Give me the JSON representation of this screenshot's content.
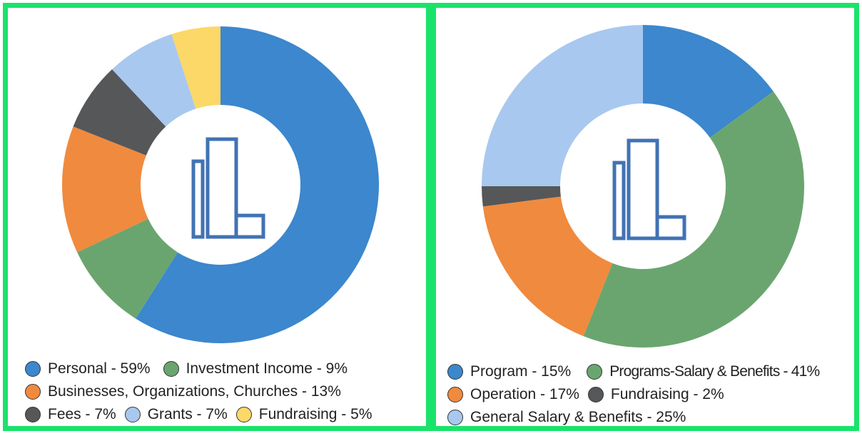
{
  "chart_data": [
    {
      "type": "pie",
      "variant": "donut",
      "title": "",
      "categories": [
        "Personal",
        "Investment Income",
        "Businesses, Organizations, Churches",
        "Fees",
        "Grants",
        "Fundraising"
      ],
      "values": [
        59,
        9,
        13,
        7,
        7,
        5
      ],
      "colors": [
        "#3c87cd",
        "#6aa56f",
        "#f08a3e",
        "#555759",
        "#a8c8ef",
        "#fbd867"
      ],
      "legend_labels": [
        "Personal - 59%",
        "Investment Income - 9%",
        "Businesses, Organizations, Churches - 13%",
        "Fees - 7%",
        "Grants - 7%",
        "Fundraising - 5%"
      ],
      "legend_position": "bottom",
      "center_icon": "building-logo-icon"
    },
    {
      "type": "pie",
      "variant": "donut",
      "title": "",
      "categories": [
        "Program",
        "Programs-Salary & Benefits",
        "Operation",
        "Fundraising",
        "General Salary & Benefits"
      ],
      "values": [
        15,
        41,
        17,
        2,
        25
      ],
      "colors": [
        "#3c87cd",
        "#6aa56f",
        "#f08a3e",
        "#555759",
        "#a8c8ef"
      ],
      "legend_labels": [
        "Program - 15%",
        "Programs-Salary & Benefits - 41%",
        "Operation - 17%",
        "Fundraising - 2%",
        "General Salary & Benefits - 25%"
      ],
      "legend_position": "bottom",
      "center_icon": "building-logo-icon"
    }
  ]
}
